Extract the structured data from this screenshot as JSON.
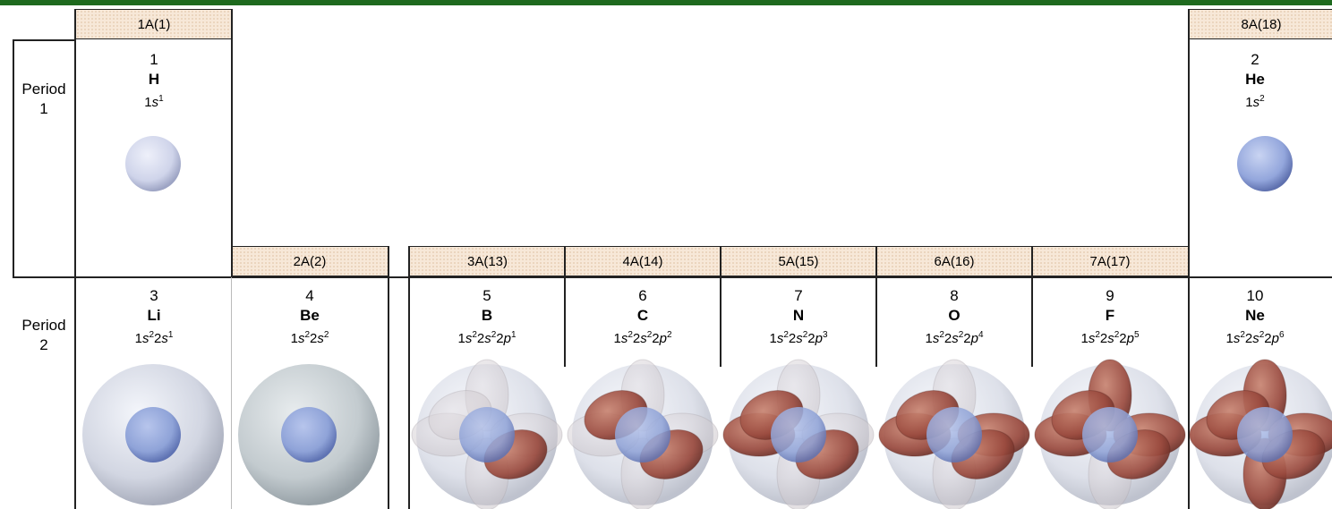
{
  "groups": [
    "1A(1)",
    "2A(2)",
    "3A(13)",
    "4A(14)",
    "5A(15)",
    "6A(16)",
    "7A(17)",
    "8A(18)"
  ],
  "periods": [
    {
      "word": "Period",
      "number": "1"
    },
    {
      "word": "Period",
      "number": "2"
    }
  ],
  "elements": [
    {
      "number": "1",
      "symbol": "H",
      "config": [
        [
          "1s",
          "1"
        ]
      ],
      "p_electrons": 0
    },
    {
      "number": "2",
      "symbol": "He",
      "config": [
        [
          "1s",
          "2"
        ]
      ],
      "p_electrons": 0
    },
    {
      "number": "3",
      "symbol": "Li",
      "config": [
        [
          "1s",
          "2"
        ],
        [
          "2s",
          "1"
        ]
      ],
      "p_electrons": 0
    },
    {
      "number": "4",
      "symbol": "Be",
      "config": [
        [
          "1s",
          "2"
        ],
        [
          "2s",
          "2"
        ]
      ],
      "p_electrons": 0
    },
    {
      "number": "5",
      "symbol": "B",
      "config": [
        [
          "1s",
          "2"
        ],
        [
          "2s",
          "2"
        ],
        [
          "2p",
          "1"
        ]
      ],
      "p_electrons": 1
    },
    {
      "number": "6",
      "symbol": "C",
      "config": [
        [
          "1s",
          "2"
        ],
        [
          "2s",
          "2"
        ],
        [
          "2p",
          "2"
        ]
      ],
      "p_electrons": 2
    },
    {
      "number": "7",
      "symbol": "N",
      "config": [
        [
          "1s",
          "2"
        ],
        [
          "2s",
          "2"
        ],
        [
          "2p",
          "3"
        ]
      ],
      "p_electrons": 3
    },
    {
      "number": "8",
      "symbol": "O",
      "config": [
        [
          "1s",
          "2"
        ],
        [
          "2s",
          "2"
        ],
        [
          "2p",
          "4"
        ]
      ],
      "p_electrons": 4
    },
    {
      "number": "9",
      "symbol": "F",
      "config": [
        [
          "1s",
          "2"
        ],
        [
          "2s",
          "2"
        ],
        [
          "2p",
          "5"
        ]
      ],
      "p_electrons": 5
    },
    {
      "number": "10",
      "symbol": "Ne",
      "config": [
        [
          "1s",
          "2"
        ],
        [
          "2s",
          "2"
        ],
        [
          "2p",
          "6"
        ]
      ],
      "p_electrons": 6
    }
  ],
  "colors": {
    "header_fill": "#f7e8d8",
    "s_orbital": "#8fa3d8",
    "p_orbital_empty": "#c9c3c8",
    "p_orbital_filled": "#9a4a3e",
    "border": "#222222",
    "top_bar": "#1e6a1e"
  }
}
